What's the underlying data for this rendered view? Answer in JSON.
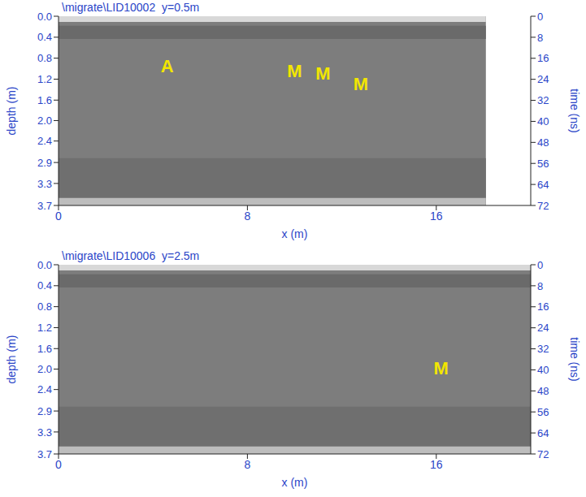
{
  "chart_data": [
    {
      "type": "radargram",
      "title": "\\migrate\\LID10002  y=0.5m",
      "x_label": "x (m)",
      "y_label": "depth (m)",
      "y2_label": "time (ns)",
      "xlim": [
        0,
        20
      ],
      "xticks": [
        0,
        8,
        16
      ],
      "ylim": [
        0,
        3.7
      ],
      "yticks": [
        {
          "value": 0,
          "label": "0.0"
        },
        {
          "value": 0.41,
          "label": "0.4"
        },
        {
          "value": 0.82,
          "label": "0.8"
        },
        {
          "value": 1.23,
          "label": "1.2"
        },
        {
          "value": 1.64,
          "label": "1.6"
        },
        {
          "value": 2.04,
          "label": "2.0"
        },
        {
          "value": 2.44,
          "label": "2.4"
        },
        {
          "value": 2.86,
          "label": "2.9"
        },
        {
          "value": 3.27,
          "label": "3.3"
        },
        {
          "value": 3.7,
          "label": "3.7"
        }
      ],
      "y2lim": [
        0,
        72
      ],
      "y2ticks": [
        0,
        8,
        16,
        24,
        32,
        40,
        48,
        56,
        64,
        72
      ],
      "radargram_xlim": [
        0,
        18.1
      ],
      "annotations": [
        {
          "text": "A",
          "x": 4.6,
          "depth": 1.0
        },
        {
          "text": "M",
          "x": 10.0,
          "depth": 1.1
        },
        {
          "text": "M",
          "x": 11.2,
          "depth": 1.15
        },
        {
          "text": "M",
          "x": 12.8,
          "depth": 1.35
        }
      ],
      "grid": false
    },
    {
      "type": "radargram",
      "title": "\\migrate\\LID10006  y=2.5m",
      "x_label": "x (m)",
      "y_label": "depth (m)",
      "y2_label": "time (ns)",
      "xlim": [
        0,
        20
      ],
      "xticks": [
        0,
        8,
        16
      ],
      "ylim": [
        0,
        3.7
      ],
      "yticks": [
        {
          "value": 0,
          "label": "0.0"
        },
        {
          "value": 0.41,
          "label": "0.4"
        },
        {
          "value": 0.82,
          "label": "0.8"
        },
        {
          "value": 1.23,
          "label": "1.2"
        },
        {
          "value": 1.64,
          "label": "1.6"
        },
        {
          "value": 2.04,
          "label": "2.0"
        },
        {
          "value": 2.44,
          "label": "2.4"
        },
        {
          "value": 2.86,
          "label": "2.9"
        },
        {
          "value": 3.27,
          "label": "3.3"
        },
        {
          "value": 3.7,
          "label": "3.7"
        }
      ],
      "y2lim": [
        0,
        72
      ],
      "y2ticks": [
        0,
        8,
        16,
        24,
        32,
        40,
        48,
        56,
        64,
        72
      ],
      "radargram_xlim": [
        0,
        20
      ],
      "annotations": [
        {
          "text": "M",
          "x": 16.2,
          "depth": 2.05
        }
      ],
      "grid": false
    }
  ]
}
